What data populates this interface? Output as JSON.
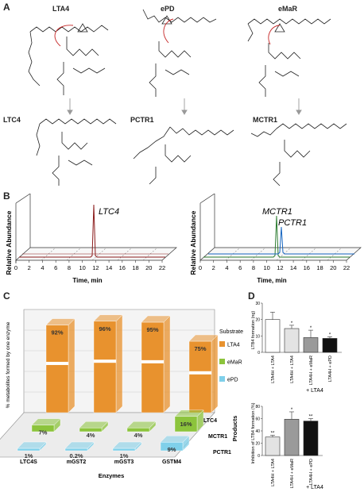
{
  "panels": {
    "a": "A",
    "b": "B",
    "c": "C",
    "d": "D"
  },
  "panel_a": {
    "substrates": [
      "LTA4",
      "ePD",
      "eMaR"
    ],
    "products": [
      "LTC4",
      "PCTR1",
      "MCTR1"
    ]
  },
  "panel_b": {
    "ylabel": "Relative Abundance",
    "xlabel": "Time, min",
    "ticks": [
      "0",
      "2",
      "4",
      "6",
      "8",
      "10",
      "12",
      "14",
      "16",
      "18",
      "20",
      "22"
    ],
    "left_peak": "LTC4",
    "right_peaks": [
      "MCTR1",
      "PCTR1"
    ]
  },
  "panel_c": {
    "ylabel": "% metabolites formed by one enzyme",
    "xlabel": "Enzymes",
    "zlabel": "Products",
    "legend_title": "Substrate",
    "legend": [
      "LTA4",
      "eMaR",
      "ePD"
    ],
    "enzymes": [
      "LTC4S",
      "mGST2",
      "mGST3",
      "GSTM4"
    ],
    "products": [
      "LTC4",
      "MCTR1",
      "PCTR1"
    ]
  },
  "panel_d": {
    "top_ylabel": "LTB4 formation (ng)",
    "bottom_ylabel": "Inhibition of LTB4 formation (%)",
    "top_categories": [
      "LTA4H + LTA4",
      "LTA4H + LTA4",
      "LTA4H + eMaR",
      "LTA4H + ePD"
    ],
    "bottom_categories": [
      "LTA4H + LTA4",
      "LTA4H + eMaR",
      "LTA4H + ePD"
    ],
    "group_label": "+ LTA4",
    "sig_top": [
      "*",
      "*",
      "*"
    ],
    "sig_bottom": [
      "**",
      "*",
      "**"
    ]
  },
  "chart_data": [
    {
      "type": "line",
      "title": "",
      "xlabel": "Time, min",
      "ylabel": "Relative Abundance",
      "xlim": [
        0,
        22
      ],
      "series": [
        {
          "name": "LTC4",
          "peak_x": 11.3,
          "color": "#8b1c1c"
        }
      ]
    },
    {
      "type": "line",
      "title": "",
      "xlabel": "Time, min",
      "ylabel": "Relative Abundance",
      "xlim": [
        0,
        22
      ],
      "series": [
        {
          "name": "MCTR1",
          "peak_x": 10.9,
          "color": "#2e7d32"
        },
        {
          "name": "PCTR1",
          "peak_x": 11.4,
          "color": "#1565c0"
        }
      ]
    },
    {
      "type": "bar",
      "title": "",
      "xlabel": "Enzymes",
      "ylabel": "% metabolites formed by one enzyme",
      "categories": [
        "LTC4S",
        "mGST2",
        "mGST3",
        "GSTM4"
      ],
      "series": [
        {
          "name": "LTA4",
          "values": [
            92,
            96,
            95,
            75
          ],
          "labels": [
            "92%",
            "96%",
            "95%",
            "75%"
          ],
          "color": "#e8922e"
        },
        {
          "name": "eMaR",
          "values": [
            7,
            4,
            4,
            16
          ],
          "labels": [
            "7%",
            "4%",
            "4%",
            "16%"
          ],
          "color": "#8cc43c"
        },
        {
          "name": "ePD",
          "values": [
            1,
            0.2,
            1,
            9
          ],
          "labels": [
            "1%",
            "0.2%",
            "1%",
            "9%"
          ],
          "color": "#7fd0ea"
        }
      ]
    },
    {
      "type": "bar",
      "title": "",
      "ylabel": "LTB4 formation (ng)",
      "categories": [
        "LTA4H + LTA4",
        "LTA4H + LTA4",
        "LTA4H + eMaR",
        "LTA4H + ePD"
      ],
      "values": [
        20,
        14.5,
        9,
        8.5
      ],
      "errors": [
        4.5,
        2,
        4.5,
        1
      ],
      "ylim": [
        0,
        30
      ],
      "yticks": [
        "0",
        "10",
        "20",
        "30"
      ]
    },
    {
      "type": "bar",
      "title": "",
      "ylabel": "Inhibition of LTB4 formation (%)",
      "categories": [
        "LTA4H + LTA4",
        "LTA4H + eMaR",
        "LTA4H + ePD"
      ],
      "values": [
        30,
        59,
        56
      ],
      "errors": [
        3,
        12,
        4
      ],
      "ylim": [
        0,
        80
      ],
      "yticks": [
        "0",
        "20",
        "40",
        "60",
        "80"
      ]
    }
  ]
}
